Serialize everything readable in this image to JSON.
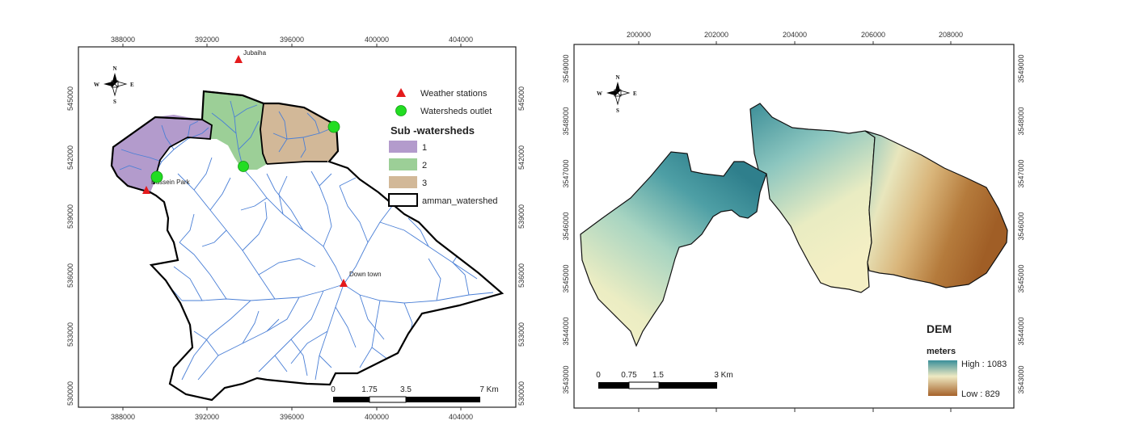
{
  "left_map": {
    "x_ticks": [
      "388000",
      "392000",
      "396000",
      "400000",
      "404000"
    ],
    "y_ticks": [
      "545000",
      "542000",
      "539000",
      "536000",
      "533000",
      "530000"
    ],
    "compass": {
      "n": "N",
      "s": "S",
      "e": "E",
      "w": "W"
    },
    "stations": [
      "Jubaiha",
      "Hussein Park",
      "Down town"
    ],
    "legend": {
      "weather_stations": "Weather stations",
      "outlets": "Watersheds outlet",
      "title": "Sub -watersheds",
      "items": [
        {
          "label": "1",
          "color": "#b39bcc"
        },
        {
          "label": "2",
          "color": "#9ccf97"
        },
        {
          "label": "3",
          "color": "#d2b898"
        }
      ],
      "boundary": "amman_watershed"
    },
    "scalebar": [
      "0",
      "1.75",
      "3.5",
      "7 Km"
    ],
    "colors": {
      "stream": "#4a7fd6",
      "station": "#e41a1c",
      "outlet": "#22dd22"
    }
  },
  "right_map": {
    "x_ticks": [
      "200000",
      "202000",
      "204000",
      "206000",
      "208000"
    ],
    "y_ticks": [
      "3549000",
      "3548000",
      "3547000",
      "3546000",
      "3545000",
      "3544000",
      "3543000"
    ],
    "compass": {
      "n": "N",
      "s": "S",
      "e": "E",
      "w": "W"
    },
    "legend": {
      "title": "DEM",
      "units": "meters",
      "high": "High : 1083",
      "low": "Low : 829",
      "high_color": "#3a8f9a",
      "low_color": "#a5622a"
    },
    "scalebar": [
      "0",
      "0.75",
      "1.5",
      "3 Km"
    ]
  }
}
